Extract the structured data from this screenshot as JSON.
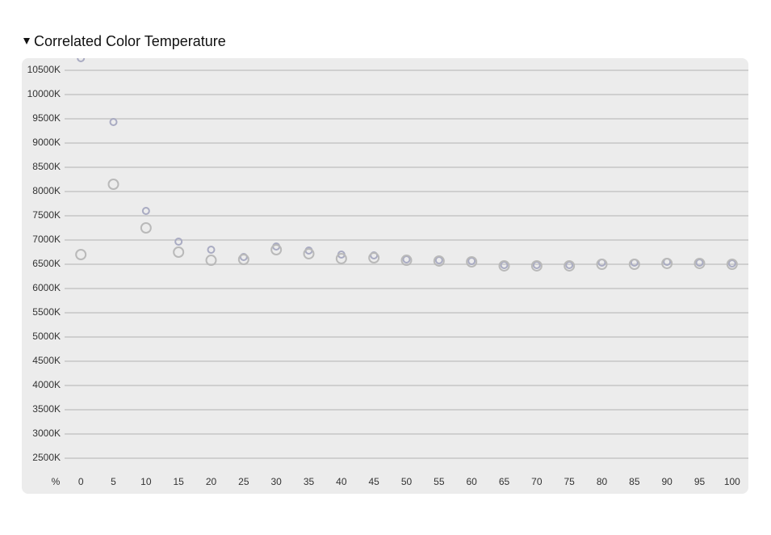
{
  "chart_data": {
    "type": "scatter",
    "title": "Correlated Color Temperature",
    "x_label": "%",
    "x": [
      0,
      5,
      10,
      15,
      20,
      25,
      30,
      35,
      40,
      45,
      50,
      55,
      60,
      65,
      70,
      75,
      80,
      85,
      90,
      95,
      100
    ],
    "series": [
      {
        "color": "#a9abc2",
        "values": [
          10750,
          9433,
          7600,
          6967,
          6800,
          6650,
          6867,
          6783,
          6700,
          6683,
          6600,
          6583,
          6567,
          6483,
          6483,
          6483,
          6533,
          6533,
          6550,
          6533,
          6517
        ]
      },
      {
        "color": "#b9b9b9",
        "values": [
          6700,
          8150,
          7250,
          6750,
          6583,
          6600,
          6800,
          6717,
          6617,
          6633,
          6583,
          6567,
          6550,
          6467,
          6467,
          6467,
          6500,
          6500,
          6517,
          6517,
          6500
        ]
      }
    ],
    "xlim": [
      -2.5,
      102.5
    ],
    "ylim": [
      2250,
      10750
    ],
    "xticks": [
      0,
      5,
      10,
      15,
      20,
      25,
      30,
      35,
      40,
      45,
      50,
      55,
      60,
      65,
      70,
      75,
      80,
      85,
      90,
      95,
      100
    ],
    "yticks": [
      {
        "value": 2500,
        "label": "2500K"
      },
      {
        "value": 3000,
        "label": "3000K"
      },
      {
        "value": 3500,
        "label": "3500K"
      },
      {
        "value": 4000,
        "label": "4000K"
      },
      {
        "value": 4500,
        "label": "4500K"
      },
      {
        "value": 5000,
        "label": "5000K"
      },
      {
        "value": 5500,
        "label": "5500K"
      },
      {
        "value": 6000,
        "label": "6000K"
      },
      {
        "value": 6500,
        "label": "6500K"
      },
      {
        "value": 7000,
        "label": "7000K"
      },
      {
        "value": 7500,
        "label": "7500K"
      },
      {
        "value": 8000,
        "label": "8000K"
      },
      {
        "value": 8500,
        "label": "8500K"
      },
      {
        "value": 9000,
        "label": "9000K"
      },
      {
        "value": 9500,
        "label": "9500K"
      },
      {
        "value": 10000,
        "label": "10000K"
      },
      {
        "value": 10500,
        "label": "10500K"
      }
    ],
    "grid": true
  }
}
